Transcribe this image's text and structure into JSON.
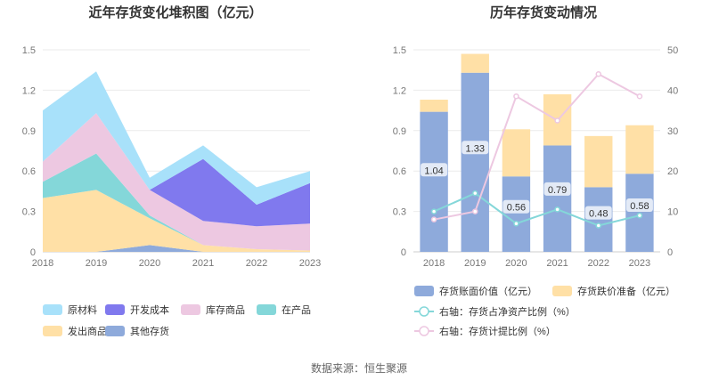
{
  "source": "数据来源：恒生聚源",
  "chart_data": [
    {
      "type": "area",
      "stacked": true,
      "title": "近年存货变化堆积图（亿元）",
      "categories": [
        "2018",
        "2019",
        "2020",
        "2021",
        "2022",
        "2023"
      ],
      "ylim": [
        0,
        1.5
      ],
      "yticks": [
        "0",
        "0.3",
        "0.6",
        "0.9",
        "1.2",
        "1.5"
      ],
      "series": [
        {
          "name": "其他存货",
          "color": "#8EAADB",
          "values": [
            0.0,
            0.0,
            0.05,
            0.0,
            0.0,
            0.0
          ]
        },
        {
          "name": "发出商品",
          "color": "#FFE0A6",
          "values": [
            0.4,
            0.46,
            0.2,
            0.05,
            0.02,
            0.01
          ]
        },
        {
          "name": "在产品",
          "color": "#84D7D9",
          "values": [
            0.12,
            0.27,
            0.02,
            0.0,
            0.0,
            0.0
          ]
        },
        {
          "name": "库存商品",
          "color": "#EDC8E1",
          "values": [
            0.15,
            0.3,
            0.19,
            0.18,
            0.17,
            0.2
          ]
        },
        {
          "name": "开发成本",
          "color": "#8079EE",
          "values": [
            0.0,
            0.0,
            0.0,
            0.46,
            0.16,
            0.3
          ]
        },
        {
          "name": "原材料",
          "color": "#A8E1FA",
          "values": [
            0.38,
            0.31,
            0.09,
            0.1,
            0.13,
            0.09
          ]
        }
      ],
      "legend": [
        "原材料",
        "开发成本",
        "库存商品",
        "在产品",
        "发出商品",
        "其他存货"
      ]
    },
    {
      "type": "bar+line",
      "title": "历年存货变动情况",
      "categories": [
        "2018",
        "2019",
        "2020",
        "2021",
        "2022",
        "2023"
      ],
      "ylim_left": [
        0,
        1.5
      ],
      "ylim_right": [
        0,
        50
      ],
      "yticks_left": [
        "0",
        "0.3",
        "0.6",
        "0.9",
        "1.2",
        "1.5"
      ],
      "yticks_right": [
        "0",
        "10",
        "20",
        "30",
        "40",
        "50"
      ],
      "bar_series": [
        {
          "name": "存货账面价值（亿元）",
          "color": "#8EAADB",
          "values": [
            1.04,
            1.33,
            0.56,
            0.79,
            0.48,
            0.58
          ]
        },
        {
          "name": "存货跌价准备（亿元）",
          "color": "#FFE0A6",
          "values": [
            0.09,
            0.14,
            0.35,
            0.38,
            0.38,
            0.36
          ]
        }
      ],
      "bar_labels": [
        "1.04",
        "1.33",
        "0.56",
        "0.79",
        "0.48",
        "0.58"
      ],
      "line_series": [
        {
          "name": "右轴：存货占净资产比例（%）",
          "color": "#84D7D9",
          "values": [
            10,
            14.5,
            7,
            10.5,
            6.5,
            9
          ]
        },
        {
          "name": "右轴：存货计提比例（%）",
          "color": "#EDC8E1",
          "values": [
            8,
            10,
            38.5,
            32.5,
            44,
            38.5
          ]
        }
      ]
    }
  ]
}
